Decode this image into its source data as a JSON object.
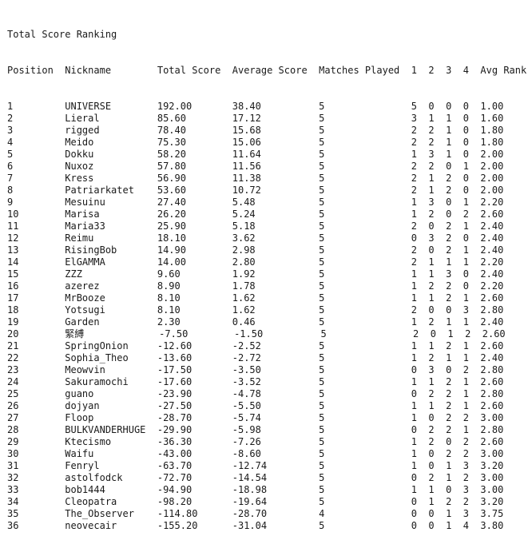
{
  "title": "Total Score Ranking",
  "header": "Position  Nickname        Total Score  Average Score  Matches Played  1  2  3  4  Avg Rank",
  "rows": [
    "1         UNIVERSE        192.00       38.40          5               5  0  0  0  1.00",
    "2         Lieral          85.60        17.12          5               3  1  1  0  1.60",
    "3         rigged          78.40        15.68          5               2  2  1  0  1.80",
    "4         Meido           75.30        15.06          5               2  2  1  0  1.80",
    "5         Dokku           58.20        11.64          5               1  3  1  0  2.00",
    "6         Nuxoz           57.80        11.56          5               2  2  0  1  2.00",
    "7         Kress           56.90        11.38          5               2  1  2  0  2.00",
    "8         Patriarkatet    53.60        10.72          5               2  1  2  0  2.00",
    "9         Mesuinu         27.40        5.48           5               1  3  0  1  2.20",
    "10        Marisa          26.20        5.24           5               1  2  0  2  2.60",
    "11        Maria33         25.90        5.18           5               2  0  2  1  2.40",
    "12        Reimu           18.10        3.62           5               0  3  2  0  2.40",
    "13        RisingBob       14.90        2.98           5               2  0  2  1  2.40",
    "14        ElGAMMA         14.00        2.80           5               2  1  1  1  2.20",
    "15        ZZZ             9.60         1.92           5               1  1  3  0  2.40",
    "16        azerez          8.90         1.78           5               1  2  2  0  2.20",
    "17        MrBooze         8.10         1.62           5               1  1  2  1  2.60",
    "18        Yotsugi         8.10         1.62           5               2  0  0  3  2.80",
    "19        Garden          2.30         0.46           5               1  2  1  1  2.40",
    "20        緊縛             -7.50        -1.50          5               2  0  1  2  2.60",
    "21        SpringOnion     -12.60       -2.52          5               1  1  2  1  2.60",
    "22        Sophia_Theo     -13.60       -2.72          5               1  2  1  1  2.40",
    "23        Meowvin         -17.50       -3.50          5               0  3  0  2  2.80",
    "24        Sakuramochi     -17.60       -3.52          5               1  1  2  1  2.60",
    "25        guano           -23.90       -4.78          5               0  2  2  1  2.80",
    "26        dojyan          -27.50       -5.50          5               1  1  2  1  2.60",
    "27        Floop           -28.70       -5.74          5               1  0  2  2  3.00",
    "28        BULKVANDERHUGE  -29.90       -5.98          5               0  2  2  1  2.80",
    "29        Ktecismo        -36.30       -7.26          5               1  2  0  2  2.60",
    "30        Waifu           -43.00       -8.60          5               1  0  2  2  3.00",
    "31        Fenryl          -63.70       -12.74         5               1  0  1  3  3.20",
    "32        astolfodck      -72.70       -14.54         5               0  2  1  2  3.00",
    "33        bob1444         -94.90       -18.98         5               1  1  0  3  3.00",
    "34        Cleopatra       -98.20       -19.64         5               0  1  2  2  3.20",
    "35        The_Observer    -114.80      -28.70         4               0  0  1  3  3.75",
    "36        neovecair       -155.20      -31.04         5               0  0  1  4  3.80"
  ]
}
